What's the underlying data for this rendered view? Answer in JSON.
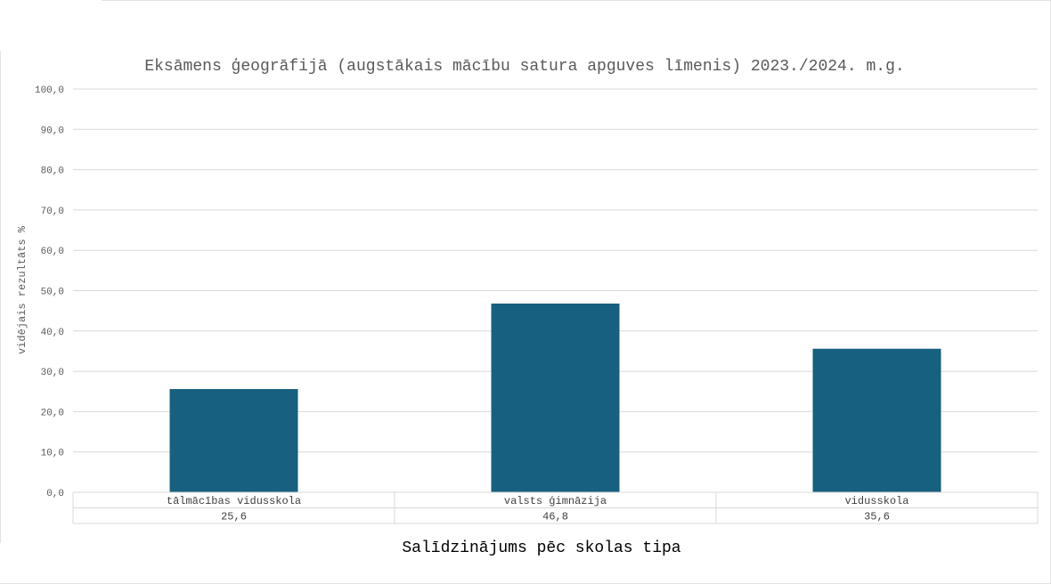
{
  "chart_data": {
    "type": "bar",
    "title": "Eksāmens ģeogrāfijā (augstākais mācību satura apguves līmenis) 2023./2024. m.g.",
    "ylabel": "vidējais rezultāts %",
    "xlabel": "Salīdzinājums pēc skolas tipa",
    "categories": [
      "tālmācības vidusskola",
      "valsts ģimnāzija",
      "vidusskola"
    ],
    "values": [
      25.6,
      46.8,
      35.6
    ],
    "value_labels": [
      "25,6",
      "46,8",
      "35,6"
    ],
    "ylim": [
      0,
      100
    ],
    "yticks": [
      "0,0",
      "10,0",
      "20,0",
      "30,0",
      "40,0",
      "50,0",
      "60,0",
      "70,0",
      "80,0",
      "90,0",
      "100,0"
    ],
    "grid": true,
    "data_table": true,
    "bar_color": "#17607f"
  }
}
